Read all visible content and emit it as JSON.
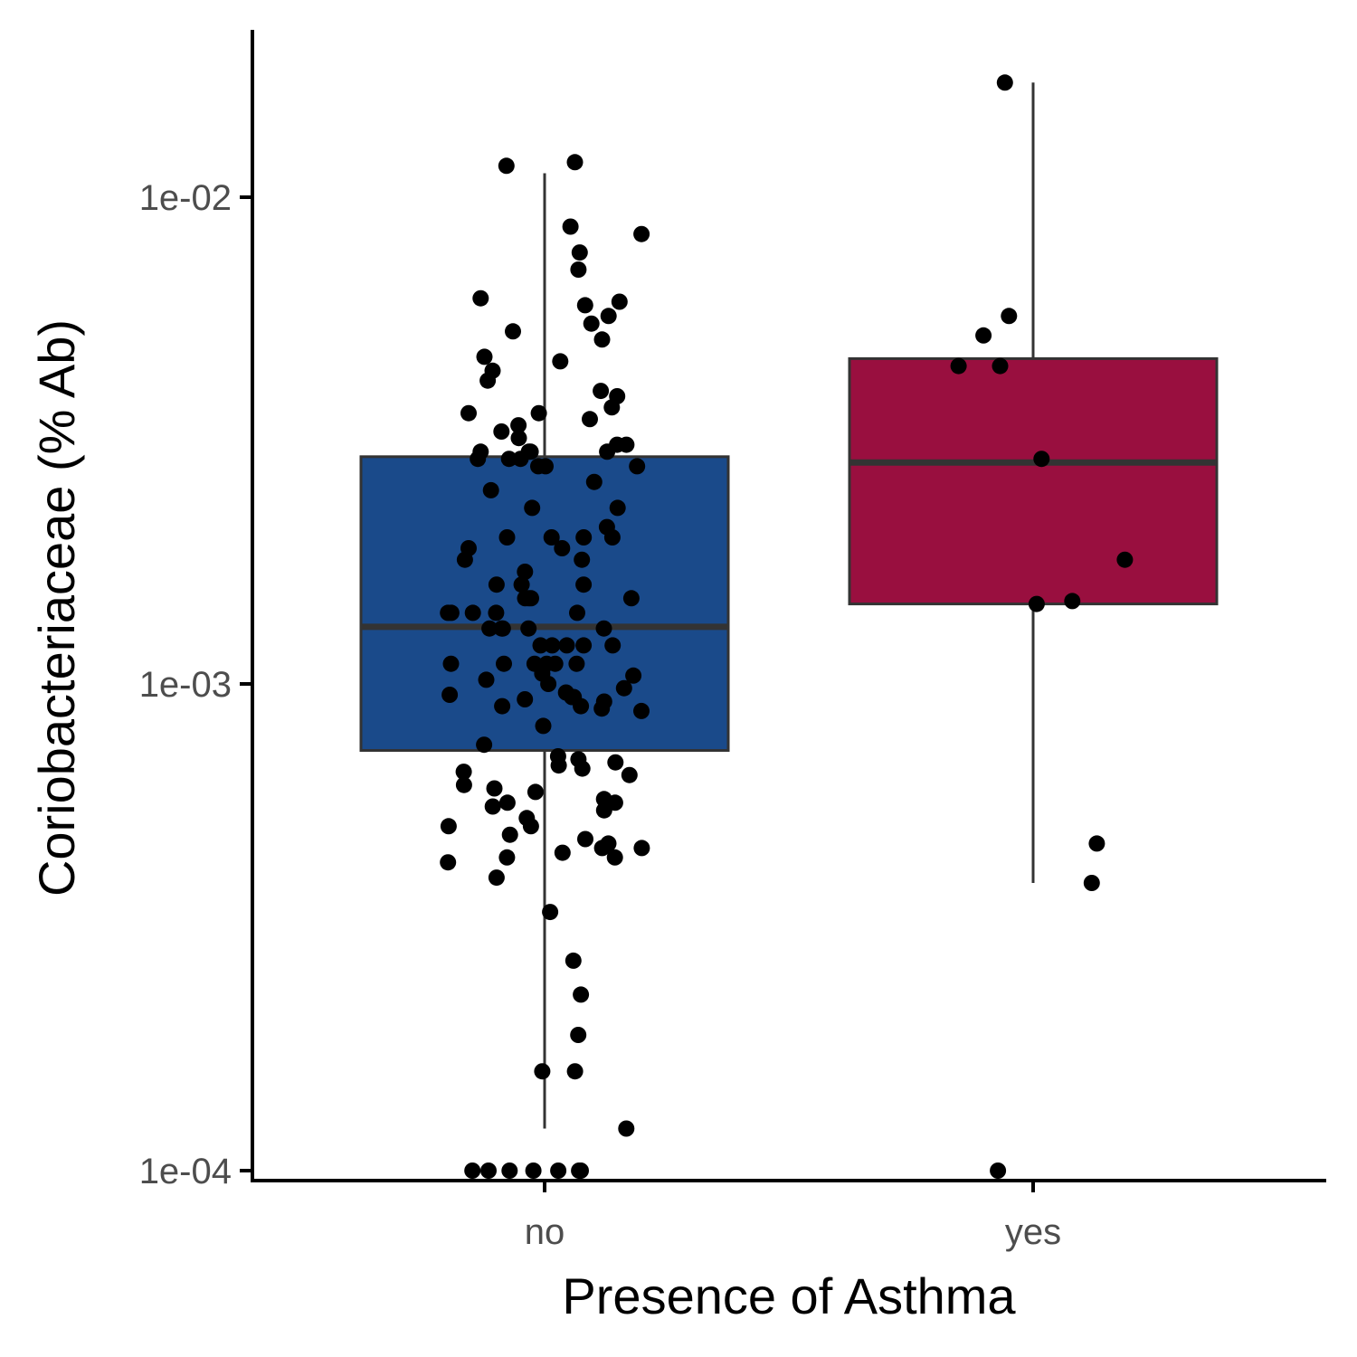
{
  "chart_data": {
    "type": "box",
    "xlabel": "Presence of Asthma",
    "ylabel": "Coriobacteriaceae (% Ab)",
    "yscale": "log10",
    "ylim": [
      0.0001,
      0.025
    ],
    "yticks": [
      {
        "value": 0.0001,
        "label": "1e-04"
      },
      {
        "value": 0.001,
        "label": "1e-03"
      },
      {
        "value": 0.01,
        "label": "1e-02"
      }
    ],
    "categories": [
      "no",
      "yes"
    ],
    "grid": false,
    "legend": "none",
    "groups": [
      {
        "category": "no",
        "color": "#1a4a8a",
        "box": {
          "q1": 0.00073,
          "median": 0.00131,
          "q3": 0.00293,
          "whisker_low": 0.000122,
          "whisker_high": 0.0112
        },
        "points": [
          0.0118,
          0.0116,
          0.0087,
          0.0084,
          0.0077,
          0.0071,
          0.0062,
          0.0061,
          0.006,
          0.0057,
          0.0055,
          0.0053,
          0.0051,
          0.0047,
          0.0046,
          0.0044,
          0.0042,
          0.004,
          0.0039,
          0.0037,
          0.0036,
          0.0036,
          0.0035,
          0.0034,
          0.0033,
          0.0032,
          0.0031,
          0.0031,
          0.003,
          0.003,
          0.003,
          0.003,
          0.0029,
          0.0029,
          0.0029,
          0.0028,
          0.0028,
          0.0028,
          0.0026,
          0.0025,
          0.0023,
          0.0023,
          0.0021,
          0.002,
          0.002,
          0.002,
          0.002,
          0.0019,
          0.0019,
          0.0018,
          0.0018,
          0.0017,
          0.0016,
          0.0016,
          0.0016,
          0.0015,
          0.0015,
          0.0015,
          0.0015,
          0.0014,
          0.0014,
          0.0014,
          0.0014,
          0.0014,
          0.0013,
          0.0013,
          0.0013,
          0.0013,
          0.0013,
          0.0012,
          0.0012,
          0.0012,
          0.0012,
          0.0012,
          0.0011,
          0.0011,
          0.0011,
          0.0011,
          0.0011,
          0.0011,
          0.00105,
          0.00104,
          0.00102,
          0.001,
          0.00098,
          0.00096,
          0.00095,
          0.00094,
          0.00094,
          0.00093,
          0.00092,
          0.0009,
          0.0009,
          0.00089,
          0.00088,
          0.00082,
          0.00075,
          0.00071,
          0.0007,
          0.00069,
          0.00068,
          0.00067,
          0.00066,
          0.00065,
          0.00062,
          0.00061,
          0.0006,
          0.00058,
          0.00057,
          0.00057,
          0.00056,
          0.00055,
          0.00053,
          0.00051,
          0.00051,
          0.00049,
          0.00048,
          0.00047,
          0.00046,
          0.00046,
          0.00045,
          0.00044,
          0.00044,
          0.00043,
          0.0004,
          0.00034,
          0.00027,
          0.00023,
          0.00019,
          0.00016,
          0.00016,
          0.000122,
          0.0001,
          0.0001,
          0.0001,
          0.0001,
          0.0001,
          0.0001,
          0.0001,
          0.0001
        ]
      },
      {
        "category": "yes",
        "color": "#990f3f",
        "box": {
          "q1": 0.00146,
          "median": 0.00285,
          "q3": 0.00466,
          "whisker_low": 0.00039,
          "whisker_high": 0.0172
        },
        "points": [
          0.0172,
          0.0057,
          0.0052,
          0.0045,
          0.0045,
          0.0029,
          0.0018,
          0.00148,
          0.00146,
          0.00047,
          0.00039,
          0.0001
        ]
      }
    ]
  }
}
